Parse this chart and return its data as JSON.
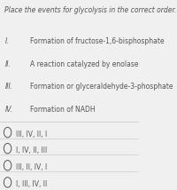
{
  "title": "Place the events for glycolysis in the correct order.",
  "items": [
    {
      "num": "I.",
      "text": "Formation of fructose-1,6-bisphosphate"
    },
    {
      "num": "II.",
      "text": "A reaction catalyzed by enolase"
    },
    {
      "num": "III.",
      "text": "Formation or glyceraldehyde-3-phosphate"
    },
    {
      "num": "IV.",
      "text": "Formation of NADH"
    }
  ],
  "options": [
    {
      "label": "III, IV, II, I",
      "selected": false
    },
    {
      "label": "I, IV, II, III",
      "selected": false
    },
    {
      "label": "III, II, IV, I",
      "selected": false
    },
    {
      "label": "I, III, IV, II",
      "selected": false
    }
  ],
  "bg_color": "#f0f0f0",
  "title_fontsize": 5.5,
  "item_num_fontsize": 5.5,
  "item_text_fontsize": 5.5,
  "option_fontsize": 5.5,
  "divider_color": "#cccccc",
  "text_color": "#555555",
  "circle_color": "#555555"
}
